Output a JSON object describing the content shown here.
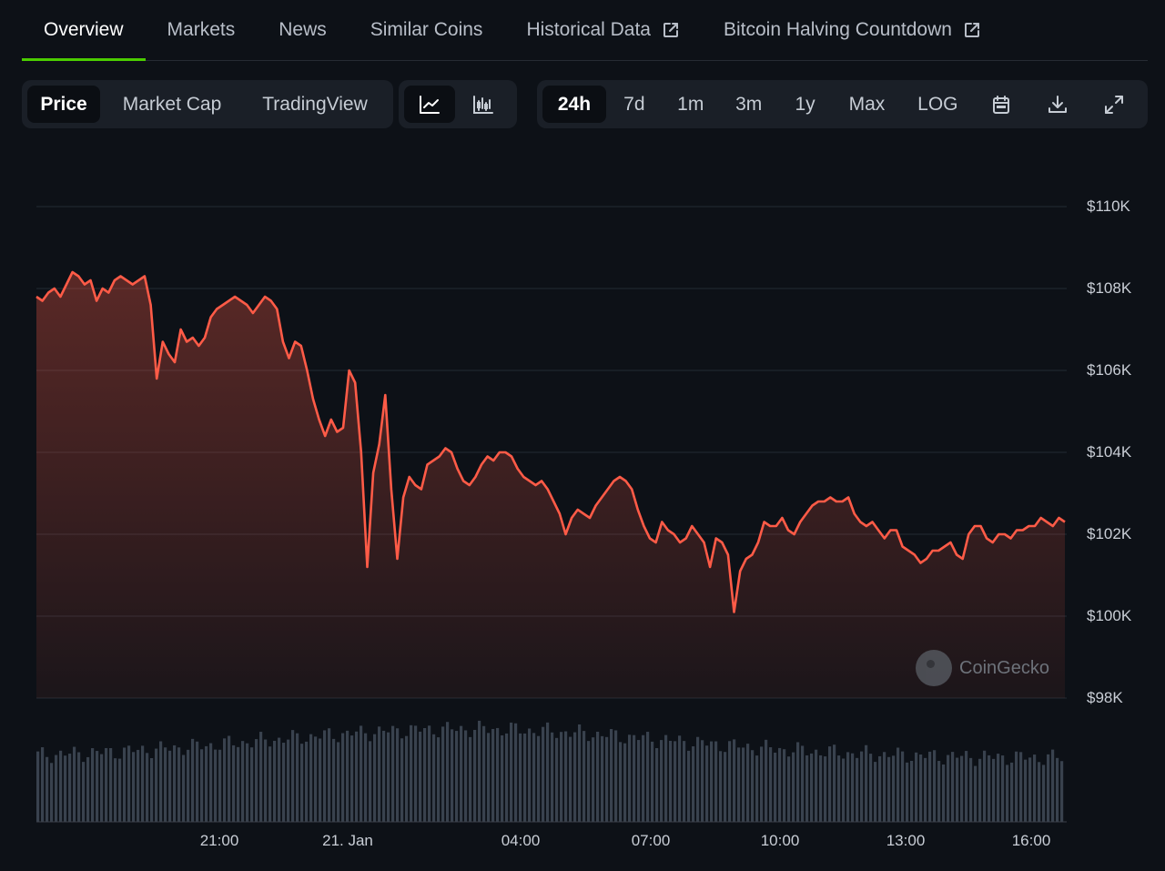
{
  "tabs": [
    {
      "label": "Overview",
      "active": true
    },
    {
      "label": "Markets"
    },
    {
      "label": "News"
    },
    {
      "label": "Similar Coins"
    },
    {
      "label": "Historical Data",
      "external": true
    },
    {
      "label": "Bitcoin Halving Countdown",
      "external": true
    }
  ],
  "toolbar": {
    "metric_tabs": [
      "Price",
      "Market Cap",
      "TradingView"
    ],
    "chart_style_icons": [
      "line-chart-icon",
      "candlestick-chart-icon"
    ],
    "ranges": [
      "24h",
      "7d",
      "1m",
      "3m",
      "1y",
      "Max",
      "LOG"
    ],
    "action_icons": [
      "calendar-icon",
      "download-icon",
      "fullscreen-icon"
    ]
  },
  "watermark": "CoinGecko",
  "colors": {
    "line": "#ff5b47",
    "accent": "#4bcc00",
    "volume": "#39424e"
  },
  "chart_data": {
    "type": "line",
    "y_ticks": [
      "$110K",
      "$108K",
      "$106K",
      "$104K",
      "$102K",
      "$100K",
      "$98K"
    ],
    "x_ticks": [
      "21:00",
      "21. Jan",
      "04:00",
      "07:00",
      "10:00",
      "13:00",
      "16:00"
    ],
    "ylim": [
      98000,
      110000
    ],
    "grid": true,
    "series": [
      {
        "values": [
          107800,
          107700,
          107900,
          108000,
          107800,
          108100,
          108400,
          108300,
          108100,
          108200,
          107700,
          108000,
          107900,
          108200,
          108300,
          108200,
          108100,
          108200,
          108300,
          107600,
          105800,
          106700,
          106400,
          106200,
          107000,
          106700,
          106800,
          106600,
          106800,
          107300,
          107500,
          107600,
          107700,
          107800,
          107700,
          107600,
          107400,
          107600,
          107800,
          107700,
          107500,
          106700,
          106300,
          106700,
          106600,
          106000,
          105300,
          104800,
          104400,
          104800,
          104500,
          104600,
          106000,
          105700,
          104000,
          101200,
          103500,
          104200,
          105400,
          103100,
          101400,
          102900,
          103400,
          103200,
          103100,
          103700,
          103800,
          103900,
          104100,
          104000,
          103600,
          103300,
          103200,
          103400,
          103700,
          103900,
          103800,
          104000,
          104000,
          103900,
          103600,
          103400,
          103300,
          103200,
          103300,
          103100,
          102800,
          102500,
          102000,
          102400,
          102600,
          102500,
          102400,
          102700,
          102900,
          103100,
          103300,
          103400,
          103300,
          103100,
          102600,
          102200,
          101900,
          101800,
          102300,
          102100,
          102000,
          101800,
          101900,
          102200,
          102000,
          101800,
          101200,
          101900,
          101800,
          101500,
          100100,
          101100,
          101400,
          101500,
          101800,
          102300,
          102200,
          102200,
          102400,
          102100,
          102000,
          102300,
          102500,
          102700,
          102800,
          102800,
          102900,
          102800,
          102800,
          102900,
          102500,
          102300,
          102200,
          102300,
          102100,
          101900,
          102100,
          102100,
          101700,
          101600,
          101500,
          101300,
          101400,
          101600,
          101600,
          101700,
          101800,
          101500,
          101400,
          102000,
          102200,
          102200,
          101900,
          101800,
          102000,
          102000,
          101900,
          102100,
          102100,
          102200,
          102200,
          102400,
          102300,
          102200,
          102400,
          102300
        ]
      }
    ]
  }
}
